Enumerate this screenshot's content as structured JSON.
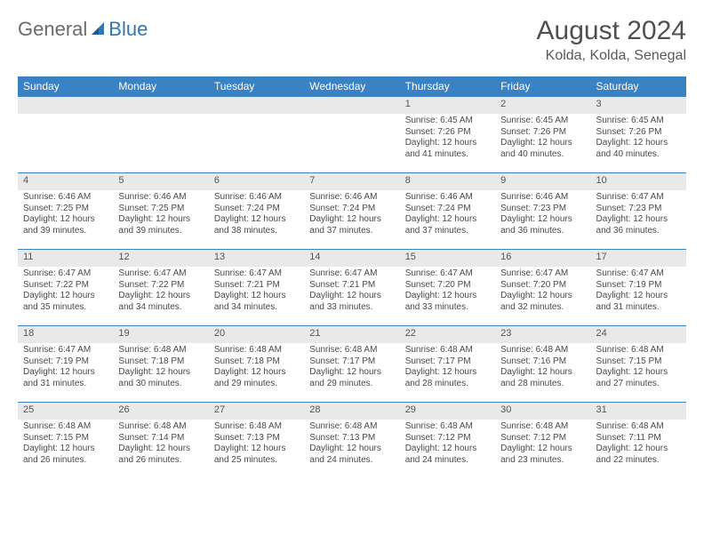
{
  "logo": {
    "word1": "General",
    "word2": "Blue"
  },
  "title": "August 2024",
  "location": "Kolda, Kolda, Senegal",
  "colors": {
    "header_bg": "#3b82c4",
    "header_text": "#ffffff",
    "daynum_bg": "#e9e9e9",
    "rule": "#3b82c4",
    "text": "#4a4a4a",
    "page_bg": "#ffffff"
  },
  "typography": {
    "title_fontsize": 30,
    "location_fontsize": 16,
    "weekday_fontsize": 12,
    "daynum_fontsize": 11,
    "cell_fontsize": 10
  },
  "weekdays": [
    "Sunday",
    "Monday",
    "Tuesday",
    "Wednesday",
    "Thursday",
    "Friday",
    "Saturday"
  ],
  "weeks": [
    [
      null,
      null,
      null,
      null,
      {
        "d": "1",
        "sr": "Sunrise: 6:45 AM",
        "ss": "Sunset: 7:26 PM",
        "dl1": "Daylight: 12 hours",
        "dl2": "and 41 minutes."
      },
      {
        "d": "2",
        "sr": "Sunrise: 6:45 AM",
        "ss": "Sunset: 7:26 PM",
        "dl1": "Daylight: 12 hours",
        "dl2": "and 40 minutes."
      },
      {
        "d": "3",
        "sr": "Sunrise: 6:45 AM",
        "ss": "Sunset: 7:26 PM",
        "dl1": "Daylight: 12 hours",
        "dl2": "and 40 minutes."
      }
    ],
    [
      {
        "d": "4",
        "sr": "Sunrise: 6:46 AM",
        "ss": "Sunset: 7:25 PM",
        "dl1": "Daylight: 12 hours",
        "dl2": "and 39 minutes."
      },
      {
        "d": "5",
        "sr": "Sunrise: 6:46 AM",
        "ss": "Sunset: 7:25 PM",
        "dl1": "Daylight: 12 hours",
        "dl2": "and 39 minutes."
      },
      {
        "d": "6",
        "sr": "Sunrise: 6:46 AM",
        "ss": "Sunset: 7:24 PM",
        "dl1": "Daylight: 12 hours",
        "dl2": "and 38 minutes."
      },
      {
        "d": "7",
        "sr": "Sunrise: 6:46 AM",
        "ss": "Sunset: 7:24 PM",
        "dl1": "Daylight: 12 hours",
        "dl2": "and 37 minutes."
      },
      {
        "d": "8",
        "sr": "Sunrise: 6:46 AM",
        "ss": "Sunset: 7:24 PM",
        "dl1": "Daylight: 12 hours",
        "dl2": "and 37 minutes."
      },
      {
        "d": "9",
        "sr": "Sunrise: 6:46 AM",
        "ss": "Sunset: 7:23 PM",
        "dl1": "Daylight: 12 hours",
        "dl2": "and 36 minutes."
      },
      {
        "d": "10",
        "sr": "Sunrise: 6:47 AM",
        "ss": "Sunset: 7:23 PM",
        "dl1": "Daylight: 12 hours",
        "dl2": "and 36 minutes."
      }
    ],
    [
      {
        "d": "11",
        "sr": "Sunrise: 6:47 AM",
        "ss": "Sunset: 7:22 PM",
        "dl1": "Daylight: 12 hours",
        "dl2": "and 35 minutes."
      },
      {
        "d": "12",
        "sr": "Sunrise: 6:47 AM",
        "ss": "Sunset: 7:22 PM",
        "dl1": "Daylight: 12 hours",
        "dl2": "and 34 minutes."
      },
      {
        "d": "13",
        "sr": "Sunrise: 6:47 AM",
        "ss": "Sunset: 7:21 PM",
        "dl1": "Daylight: 12 hours",
        "dl2": "and 34 minutes."
      },
      {
        "d": "14",
        "sr": "Sunrise: 6:47 AM",
        "ss": "Sunset: 7:21 PM",
        "dl1": "Daylight: 12 hours",
        "dl2": "and 33 minutes."
      },
      {
        "d": "15",
        "sr": "Sunrise: 6:47 AM",
        "ss": "Sunset: 7:20 PM",
        "dl1": "Daylight: 12 hours",
        "dl2": "and 33 minutes."
      },
      {
        "d": "16",
        "sr": "Sunrise: 6:47 AM",
        "ss": "Sunset: 7:20 PM",
        "dl1": "Daylight: 12 hours",
        "dl2": "and 32 minutes."
      },
      {
        "d": "17",
        "sr": "Sunrise: 6:47 AM",
        "ss": "Sunset: 7:19 PM",
        "dl1": "Daylight: 12 hours",
        "dl2": "and 31 minutes."
      }
    ],
    [
      {
        "d": "18",
        "sr": "Sunrise: 6:47 AM",
        "ss": "Sunset: 7:19 PM",
        "dl1": "Daylight: 12 hours",
        "dl2": "and 31 minutes."
      },
      {
        "d": "19",
        "sr": "Sunrise: 6:48 AM",
        "ss": "Sunset: 7:18 PM",
        "dl1": "Daylight: 12 hours",
        "dl2": "and 30 minutes."
      },
      {
        "d": "20",
        "sr": "Sunrise: 6:48 AM",
        "ss": "Sunset: 7:18 PM",
        "dl1": "Daylight: 12 hours",
        "dl2": "and 29 minutes."
      },
      {
        "d": "21",
        "sr": "Sunrise: 6:48 AM",
        "ss": "Sunset: 7:17 PM",
        "dl1": "Daylight: 12 hours",
        "dl2": "and 29 minutes."
      },
      {
        "d": "22",
        "sr": "Sunrise: 6:48 AM",
        "ss": "Sunset: 7:17 PM",
        "dl1": "Daylight: 12 hours",
        "dl2": "and 28 minutes."
      },
      {
        "d": "23",
        "sr": "Sunrise: 6:48 AM",
        "ss": "Sunset: 7:16 PM",
        "dl1": "Daylight: 12 hours",
        "dl2": "and 28 minutes."
      },
      {
        "d": "24",
        "sr": "Sunrise: 6:48 AM",
        "ss": "Sunset: 7:15 PM",
        "dl1": "Daylight: 12 hours",
        "dl2": "and 27 minutes."
      }
    ],
    [
      {
        "d": "25",
        "sr": "Sunrise: 6:48 AM",
        "ss": "Sunset: 7:15 PM",
        "dl1": "Daylight: 12 hours",
        "dl2": "and 26 minutes."
      },
      {
        "d": "26",
        "sr": "Sunrise: 6:48 AM",
        "ss": "Sunset: 7:14 PM",
        "dl1": "Daylight: 12 hours",
        "dl2": "and 26 minutes."
      },
      {
        "d": "27",
        "sr": "Sunrise: 6:48 AM",
        "ss": "Sunset: 7:13 PM",
        "dl1": "Daylight: 12 hours",
        "dl2": "and 25 minutes."
      },
      {
        "d": "28",
        "sr": "Sunrise: 6:48 AM",
        "ss": "Sunset: 7:13 PM",
        "dl1": "Daylight: 12 hours",
        "dl2": "and 24 minutes."
      },
      {
        "d": "29",
        "sr": "Sunrise: 6:48 AM",
        "ss": "Sunset: 7:12 PM",
        "dl1": "Daylight: 12 hours",
        "dl2": "and 24 minutes."
      },
      {
        "d": "30",
        "sr": "Sunrise: 6:48 AM",
        "ss": "Sunset: 7:12 PM",
        "dl1": "Daylight: 12 hours",
        "dl2": "and 23 minutes."
      },
      {
        "d": "31",
        "sr": "Sunrise: 6:48 AM",
        "ss": "Sunset: 7:11 PM",
        "dl1": "Daylight: 12 hours",
        "dl2": "and 22 minutes."
      }
    ]
  ]
}
